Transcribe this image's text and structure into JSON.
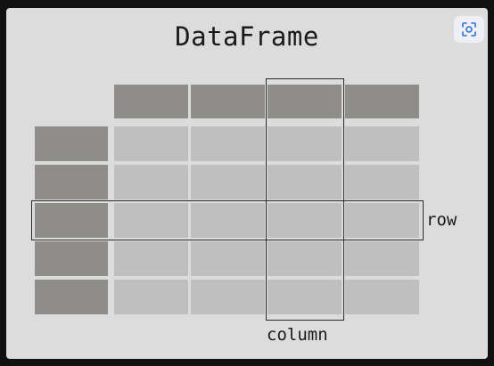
{
  "title": "DataFrame",
  "row_label": "row",
  "column_label": "column",
  "grid": {
    "header_columns": 4,
    "index_rows": 5,
    "body_rows": 5,
    "body_columns": 4,
    "highlighted_row": 3,
    "highlighted_column": 3
  },
  "icons": {
    "corner_button": "focus-scan-icon"
  },
  "colors": {
    "header": "#8e8d8a",
    "index": "#8e8d8a",
    "body": "#c0bfbf",
    "outline": "#2a2a2a",
    "background": "#dcdcdc",
    "accent": "#2f6fd6"
  }
}
